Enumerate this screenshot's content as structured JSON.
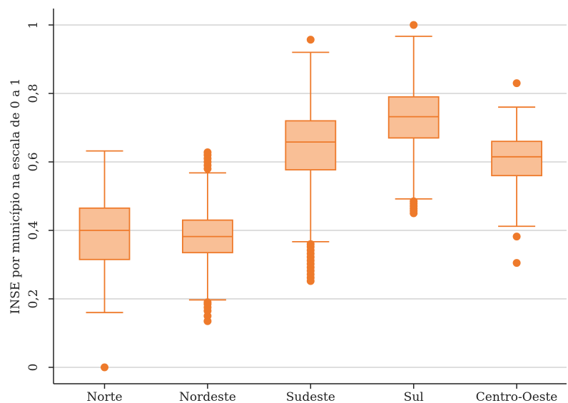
{
  "chart_data": {
    "type": "box",
    "title": "",
    "xlabel": "",
    "ylabel": "INSE por município na escala de 0 a 1",
    "ylim": [
      -0.05,
      1.05
    ],
    "yticks": [
      {
        "value": 0,
        "label": "0"
      },
      {
        "value": 0.2,
        "label": "0,2"
      },
      {
        "value": 0.4,
        "label": "0,4"
      },
      {
        "value": 0.6,
        "label": "0,6"
      },
      {
        "value": 0.8,
        "label": "0,8"
      },
      {
        "value": 1,
        "label": "1"
      }
    ],
    "grid": true,
    "colors": {
      "box_fill": "#f9bf96",
      "stroke": "#ee7a2b",
      "outlier": "#ee7a2b",
      "grid": "#d4d4d4",
      "axis": "#222222"
    },
    "categories": [
      "Norte",
      "Nordeste",
      "Sudeste",
      "Sul",
      "Centro-Oeste"
    ],
    "boxes": [
      {
        "category": "Norte",
        "whisker_low": 0.16,
        "q1": 0.315,
        "median": 0.4,
        "q3": 0.465,
        "whisker_high": 0.632,
        "outliers": [
          0.0
        ]
      },
      {
        "category": "Nordeste",
        "whisker_low": 0.197,
        "q1": 0.335,
        "median": 0.382,
        "q3": 0.43,
        "whisker_high": 0.568,
        "outliers": [
          0.135,
          0.15,
          0.165,
          0.175,
          0.185,
          0.19,
          0.58,
          0.59,
          0.6,
          0.61,
          0.62,
          0.628
        ]
      },
      {
        "category": "Sudeste",
        "whisker_low": 0.367,
        "q1": 0.577,
        "median": 0.658,
        "q3": 0.72,
        "whisker_high": 0.92,
        "outliers": [
          0.252,
          0.262,
          0.272,
          0.282,
          0.292,
          0.302,
          0.312,
          0.322,
          0.332,
          0.342,
          0.352,
          0.36,
          0.957
        ]
      },
      {
        "category": "Sul",
        "whisker_low": 0.492,
        "q1": 0.67,
        "median": 0.732,
        "q3": 0.79,
        "whisker_high": 0.967,
        "outliers": [
          0.45,
          0.457,
          0.464,
          0.471,
          0.478,
          0.485,
          1.0
        ]
      },
      {
        "category": "Centro-Oeste",
        "whisker_low": 0.412,
        "q1": 0.56,
        "median": 0.615,
        "q3": 0.66,
        "whisker_high": 0.76,
        "outliers": [
          0.305,
          0.382,
          0.83
        ]
      }
    ]
  }
}
